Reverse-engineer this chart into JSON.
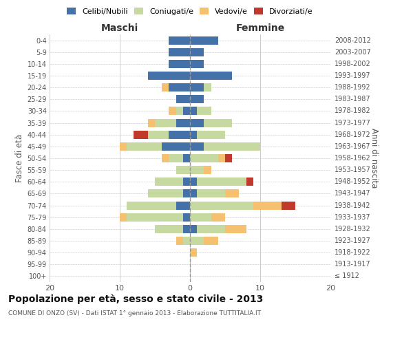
{
  "age_groups": [
    "100+",
    "95-99",
    "90-94",
    "85-89",
    "80-84",
    "75-79",
    "70-74",
    "65-69",
    "60-64",
    "55-59",
    "50-54",
    "45-49",
    "40-44",
    "35-39",
    "30-34",
    "25-29",
    "20-24",
    "15-19",
    "10-14",
    "5-9",
    "0-4"
  ],
  "birth_years": [
    "≤ 1912",
    "1913-1917",
    "1918-1922",
    "1923-1927",
    "1928-1932",
    "1933-1937",
    "1938-1942",
    "1943-1947",
    "1948-1952",
    "1953-1957",
    "1958-1962",
    "1963-1967",
    "1968-1972",
    "1973-1977",
    "1978-1982",
    "1983-1987",
    "1988-1992",
    "1993-1997",
    "1998-2002",
    "2003-2007",
    "2008-2012"
  ],
  "maschi": {
    "celibi": [
      0,
      0,
      0,
      0,
      1,
      1,
      2,
      1,
      1,
      0,
      1,
      4,
      3,
      2,
      1,
      2,
      3,
      6,
      3,
      3,
      3
    ],
    "coniugati": [
      0,
      0,
      0,
      1,
      4,
      8,
      7,
      5,
      4,
      2,
      2,
      5,
      3,
      3,
      1,
      0,
      0,
      0,
      0,
      0,
      0
    ],
    "vedovi": [
      0,
      0,
      0,
      1,
      0,
      1,
      0,
      0,
      0,
      0,
      1,
      1,
      0,
      1,
      1,
      0,
      1,
      0,
      0,
      0,
      0
    ],
    "divorziati": [
      0,
      0,
      0,
      0,
      0,
      0,
      0,
      0,
      0,
      0,
      0,
      0,
      2,
      0,
      0,
      0,
      0,
      0,
      0,
      0,
      0
    ]
  },
  "femmine": {
    "nubili": [
      0,
      0,
      0,
      0,
      1,
      0,
      0,
      1,
      1,
      0,
      0,
      2,
      1,
      2,
      1,
      2,
      2,
      6,
      2,
      2,
      4
    ],
    "coniugate": [
      0,
      0,
      0,
      2,
      4,
      3,
      9,
      4,
      7,
      2,
      4,
      8,
      4,
      4,
      2,
      0,
      1,
      0,
      0,
      0,
      0
    ],
    "vedove": [
      0,
      0,
      1,
      2,
      3,
      2,
      4,
      2,
      0,
      1,
      1,
      0,
      0,
      0,
      0,
      0,
      0,
      0,
      0,
      0,
      0
    ],
    "divorziate": [
      0,
      0,
      0,
      0,
      0,
      0,
      2,
      0,
      1,
      0,
      1,
      0,
      0,
      0,
      0,
      0,
      0,
      0,
      0,
      0,
      0
    ]
  },
  "color_celibi": "#4472a8",
  "color_coniugati": "#c5d9a0",
  "color_vedovi": "#f5c070",
  "color_divorziati": "#c0392b",
  "title": "Popolazione per età, sesso e stato civile - 2013",
  "subtitle": "COMUNE DI ONZO (SV) - Dati ISTAT 1° gennaio 2013 - Elaborazione TUTTITALIA.IT",
  "xlabel_left": "Maschi",
  "xlabel_right": "Femmine",
  "ylabel_left": "Fasce di età",
  "ylabel_right": "Anni di nascita",
  "xlim": 20,
  "background_color": "#ffffff",
  "grid_color": "#cccccc",
  "legend_labels": [
    "Celibi/Nubili",
    "Coniugati/e",
    "Vedovi/e",
    "Divorziati/e"
  ]
}
